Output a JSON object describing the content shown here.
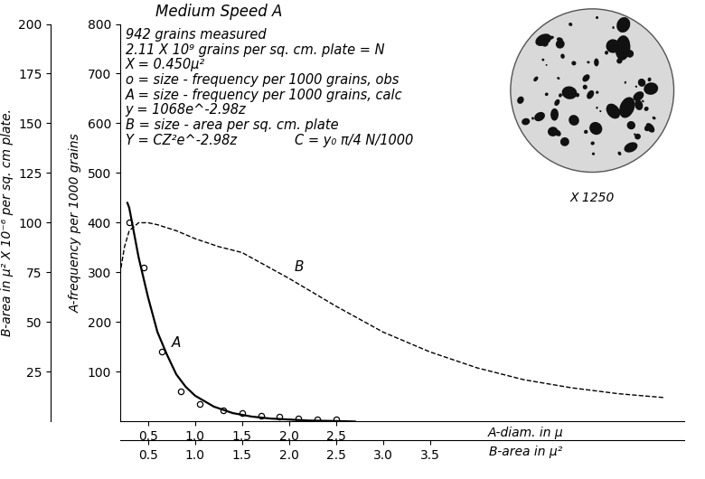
{
  "chart_data": {
    "type": "line",
    "title": "Medium Speed A",
    "annotations": [
      [
        "942 grains measured"
      ],
      [
        "2.11 X 10⁹ grains per sq. cm. plate = N"
      ],
      [
        "X = 0.450μ²"
      ],
      [
        "o = size - frequency per 1000 grains, obs"
      ],
      [
        "A = size - frequency per 1000 grains, calc"
      ],
      [
        "y = 1068e^-2.98z"
      ],
      [
        "B = size - area per sq. cm. plate"
      ],
      [
        "Y = CZ²e^-2.98z",
        "C = y₀ π/4 N/1000"
      ]
    ],
    "micrograph_label": "X 1250",
    "xlabel": "A-diam. in μ",
    "x2label": "B-area in μ²",
    "ylabel": "A-frequency per 1000 grains",
    "y2label": "B-area in μ² X 10⁻⁶ per sq. cm plate.",
    "xlim": [
      0.2,
      6.2
    ],
    "xticks": [
      0.5,
      1.0,
      1.5,
      2.0,
      2.5
    ],
    "x2lim": [
      0.2,
      6.2
    ],
    "x2ticks": [
      0.5,
      1.0,
      1.5,
      2.0,
      2.5,
      3.0,
      3.5
    ],
    "ylim": [
      0,
      800
    ],
    "yticks": [
      100,
      200,
      300,
      400,
      500,
      600,
      700,
      800
    ],
    "y2lim": [
      0,
      200
    ],
    "y2ticks": [
      25,
      50,
      75,
      100,
      125,
      150,
      175,
      200
    ],
    "grid": false,
    "series": [
      {
        "type": "scatter",
        "marker": "o",
        "color": "#000000",
        "x": [
          0.3,
          0.45,
          0.65,
          0.85,
          1.05,
          1.3,
          1.5,
          1.7,
          1.9,
          2.1,
          2.3,
          2.5
        ],
        "values": [
          400,
          310,
          140,
          60,
          35,
          22,
          18,
          12,
          9,
          7,
          5,
          4
        ]
      },
      {
        "name": "A",
        "type": "line",
        "line_style": "solid",
        "color": "#000000",
        "x": [
          0.28,
          0.3,
          0.35,
          0.4,
          0.5,
          0.6,
          0.7,
          0.8,
          0.9,
          1.0,
          1.2,
          1.4,
          1.6,
          1.8,
          2.0,
          2.2,
          2.5,
          2.7
        ],
        "values": [
          440,
          430,
          380,
          330,
          250,
          180,
          135,
          95,
          70,
          52,
          30,
          17,
          10,
          6,
          4,
          2,
          1,
          0
        ]
      },
      {
        "name": "B",
        "type": "line",
        "line_style": "dashed",
        "color": "#000000",
        "axis": "y2",
        "x": [
          0.2,
          0.25,
          0.3,
          0.4,
          0.5,
          0.6,
          0.8,
          1.0,
          1.25,
          1.5,
          2.0,
          2.5,
          3.0,
          3.5,
          4.0,
          4.5,
          5.0,
          5.5,
          6.0
        ],
        "values": [
          74,
          88,
          96,
          100,
          100,
          99,
          96,
          92,
          88,
          85,
          72,
          58,
          45,
          35,
          27,
          21,
          17,
          14,
          12
        ]
      }
    ]
  }
}
